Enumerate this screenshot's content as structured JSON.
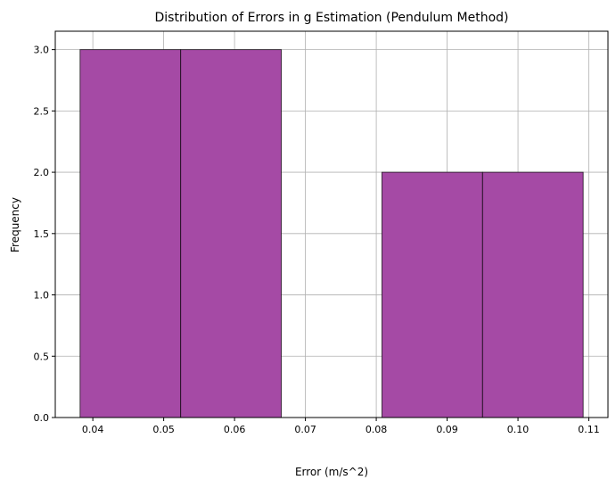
{
  "chart_data": {
    "type": "bar",
    "title": "Distribution of Errors in g Estimation (Pendulum Method)",
    "xlabel": "Error (m/s^2)",
    "ylabel": "Frequency",
    "bins": [
      {
        "x0": 0.0382,
        "x1": 0.0524,
        "count": 3
      },
      {
        "x0": 0.0524,
        "x1": 0.0666,
        "count": 3
      },
      {
        "x0": 0.0666,
        "x1": 0.0808,
        "count": 0
      },
      {
        "x0": 0.0808,
        "x1": 0.095,
        "count": 2
      },
      {
        "x0": 0.095,
        "x1": 0.1092,
        "count": 2
      }
    ],
    "xlim": [
      0.0347,
      0.1127
    ],
    "ylim": [
      0,
      3.15
    ],
    "xticks": [
      "0.04",
      "0.05",
      "0.06",
      "0.07",
      "0.08",
      "0.09",
      "0.10",
      "0.11"
    ],
    "yticks": [
      "0.0",
      "0.5",
      "1.0",
      "1.5",
      "2.0",
      "2.5",
      "3.0"
    ],
    "grid": true,
    "bar_color": "#a54aa5",
    "edge_color": "#000000"
  }
}
